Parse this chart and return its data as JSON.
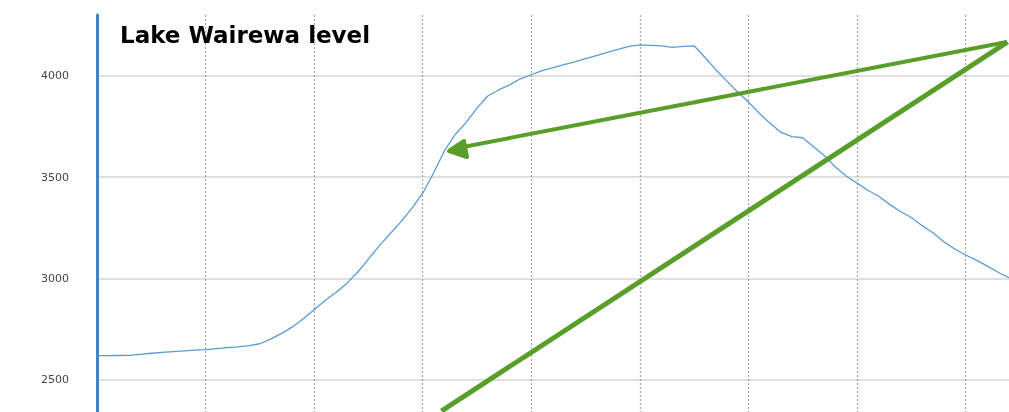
{
  "chart_data": {
    "type": "line",
    "title": "Lake Wairewa level",
    "categories": [
      null,
      null,
      null,
      null,
      null,
      null,
      null,
      null,
      null,
      null,
      null,
      null,
      null,
      null,
      null,
      null,
      null,
      null,
      null,
      null,
      null,
      null,
      null,
      null,
      null,
      null,
      null,
      null,
      null,
      null,
      null,
      null,
      null,
      null,
      null,
      null,
      null,
      null,
      null,
      null,
      null,
      null,
      null,
      null,
      null,
      null,
      null,
      null,
      null,
      null,
      null,
      null,
      null,
      null,
      null,
      null,
      null,
      null,
      null,
      null,
      null,
      null,
      null,
      null,
      null,
      null,
      null,
      null,
      null,
      null,
      null,
      null,
      null,
      null,
      null,
      null,
      null,
      null,
      null,
      null,
      null,
      null,
      null,
      null,
      null
    ],
    "series": [
      {
        "color": "#5b9bd5",
        "values": [
          2618,
          2618,
          2619,
          2620,
          2625,
          2630,
          2634,
          2638,
          2642,
          2645,
          2648,
          2653,
          2658,
          2662,
          2668,
          2677,
          2700,
          2728,
          2760,
          2800,
          2845,
          2890,
          2930,
          2975,
          3030,
          3095,
          3160,
          3220,
          3280,
          3345,
          3420,
          3520,
          3630,
          3710,
          3770,
          3840,
          3900,
          3930,
          3955,
          3985,
          4005,
          4025,
          4040,
          4055,
          4068,
          4085,
          4100,
          4115,
          4130,
          4145,
          4153,
          4150,
          4148,
          4140,
          4145,
          4148,
          4090,
          4030,
          3975,
          3920,
          3870,
          3815,
          3765,
          3720,
          3700,
          3694,
          3650,
          3605,
          3550,
          3505,
          3470,
          3435,
          3405,
          3365,
          3330,
          3300,
          3260,
          3225,
          3180,
          3145,
          3115,
          3090,
          3060,
          3030,
          3003
        ]
      }
    ],
    "ylim": [
      2340,
      4300
    ],
    "yticks": [
      2500,
      3000,
      3500,
      4000
    ],
    "grid": true,
    "marker": "none",
    "line_style": "solid",
    "tick_labels": "y"
  }
}
